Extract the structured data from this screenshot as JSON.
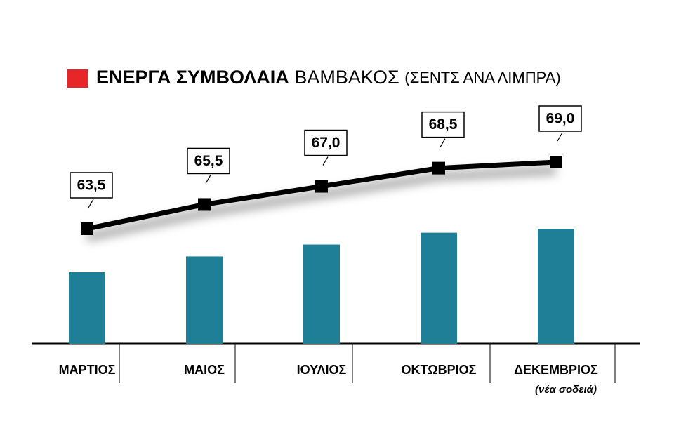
{
  "chart_data": {
    "type": "combo",
    "title": "ΕΝΕΡΓΑ ΣΥΜΒΟΛΑΙΑ",
    "subtitle": "ΒΑΜΒΑΚΟΣ",
    "unit": "(ΣΕΝΤΣ ΑΝΑ ΛΙΜΠΡΑ)",
    "title_marker_color": "#e8262a",
    "categories": [
      "ΜΑΡΤΙΟΣ",
      "ΜΑΙΟΣ",
      "ΙΟΥΛΙΟΣ",
      "ΟΚΤΩΒΡΙΟΣ",
      "ΔΕΚΕΜΒΡΙΟΣ"
    ],
    "annotation": "(νέα σοδειά)",
    "values": [
      63.5,
      65.5,
      67.0,
      68.5,
      69.0
    ],
    "value_labels": [
      "63,5",
      "65,5",
      "67,0",
      "68,5",
      "69,0"
    ],
    "bar_color": "#1f7f96",
    "line_color": "#000000"
  }
}
